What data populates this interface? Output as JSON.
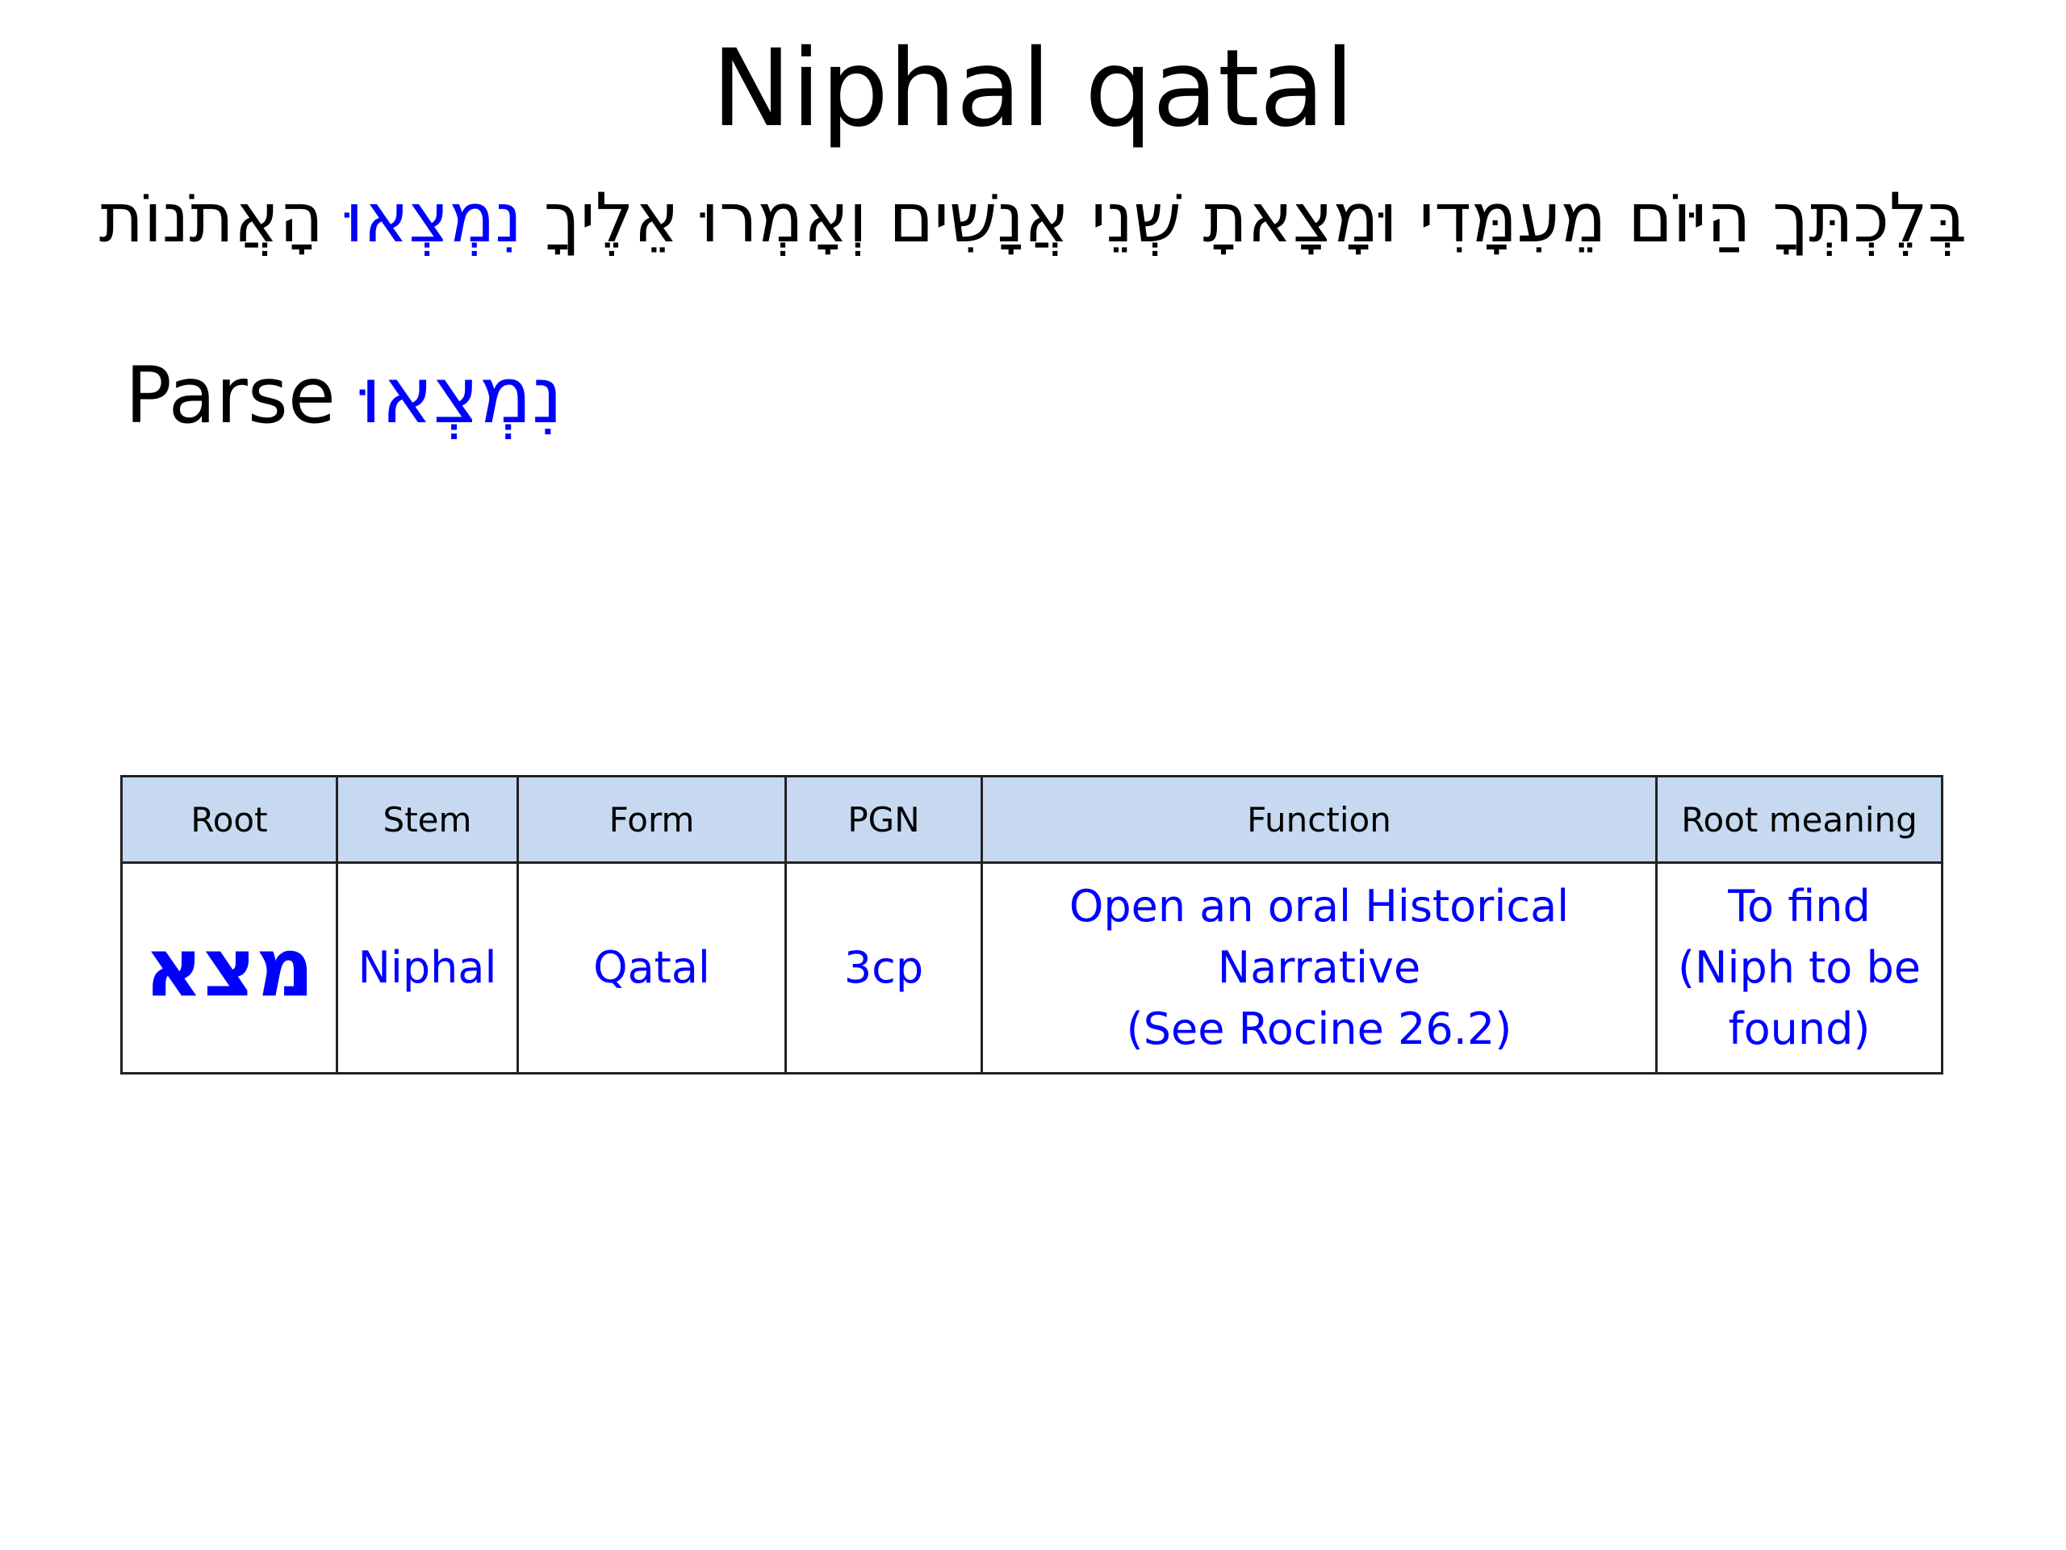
{
  "title": "Niphal qatal",
  "verse": {
    "before": "בְּלֶכְתְּךָ הַיּוֹם מֵעִמָּדִי וּמָצָאתָ שְׁנֵי אֲנָשִׁים וְאָמְרוּ אֵלֶיךָ",
    "highlight": "נִמְצְאוּ",
    "after": "הָאֲתֹנוֹת"
  },
  "parse": {
    "label": "Parse",
    "word": "נִמְצְאוּ"
  },
  "colors": {
    "highlight": "#0000ff",
    "header_bg": "#c6d9f1"
  },
  "table": {
    "headers": [
      "Root",
      "Stem",
      "Form",
      "PGN",
      "Function",
      "Root meaning"
    ],
    "row": {
      "root": "מצא",
      "stem": "Niphal",
      "form": "Qatal",
      "pgn": "3cp",
      "function": [
        "Open an oral Historical",
        "Narrative",
        "(See Rocine 26.2)"
      ],
      "meaning": [
        "To find",
        "(Niph to be",
        "found)"
      ]
    }
  }
}
